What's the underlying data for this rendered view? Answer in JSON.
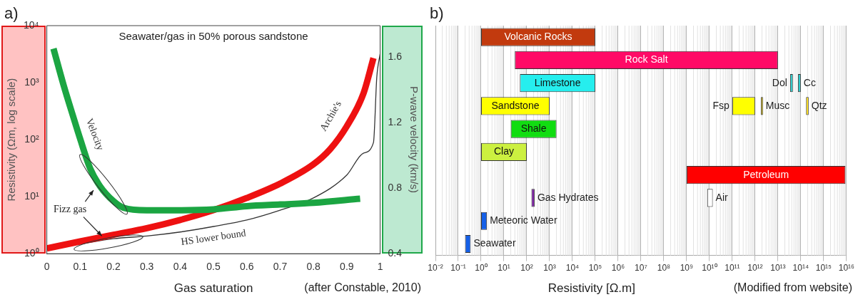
{
  "chart_data": [
    {
      "type": "line",
      "title": "Seawater/gas in 50% porous sandstone",
      "xlabel": "Gas saturation",
      "ylabel": "Resistivity (Ωm, log scale)",
      "y2label": "P-wave velocity (km/s)",
      "annotations": [
        "a)",
        "Fizz gas",
        "(after Constable, 2010)"
      ],
      "xlim": [
        0,
        1
      ],
      "xticks": [
        0,
        0.1,
        0.2,
        0.3,
        0.4,
        0.5,
        0.6,
        0.7,
        0.8,
        0.9,
        1
      ],
      "ylim": [
        1,
        10000
      ],
      "yticks": [
        {
          "value": 1,
          "label": "10⁰"
        },
        {
          "value": 10,
          "label": "10¹"
        },
        {
          "value": 100,
          "label": "10²"
        },
        {
          "value": 1000,
          "label": "10³"
        },
        {
          "value": 10000,
          "label": "10⁴"
        }
      ],
      "y2lim": [
        0.4,
        1.79
      ],
      "y2ticks": [
        0.4,
        0.8,
        1.2,
        1.6
      ],
      "log": "y",
      "series": [
        {
          "name": "Velocity",
          "color": "#1ba542",
          "axis": "y2",
          "x": [
            0.02,
            0.05,
            0.08,
            0.1,
            0.13,
            0.16,
            0.2,
            0.23,
            0.3,
            0.4,
            0.5,
            0.6,
            0.7,
            0.8,
            0.94
          ],
          "values": [
            1.65,
            1.43,
            1.23,
            1.1,
            0.92,
            0.81,
            0.72,
            0.68,
            0.665,
            0.665,
            0.67,
            0.69,
            0.7,
            0.71,
            0.735
          ]
        },
        {
          "name": "Archie's",
          "color": "#ee1111",
          "x": [
            0,
            0.1,
            0.2,
            0.3,
            0.4,
            0.5,
            0.6,
            0.7,
            0.8,
            0.85,
            0.9,
            0.95,
            0.98
          ],
          "values": [
            1.24,
            1.64,
            2.15,
            2.8,
            3.9,
            5.8,
            9.5,
            17,
            37,
            68,
            172,
            645,
            2700
          ]
        },
        {
          "name": "HS lower bound",
          "color": "#333333",
          "x": [
            0.1,
            0.2,
            0.3,
            0.4,
            0.5,
            0.6,
            0.7,
            0.8,
            0.9,
            0.95,
            0.98,
            0.99,
            1.0
          ],
          "values": [
            1.47,
            1.83,
            2.04,
            2.4,
            3.0,
            3.9,
            5.8,
            9.5,
            24,
            58,
            89,
            1250,
            3200
          ]
        }
      ]
    },
    {
      "type": "bar",
      "orientation": "horizontal",
      "xlabel": "Resistivity [Ω.m]",
      "annotations": [
        "b)",
        "(Modified from website)"
      ],
      "categories": [
        null,
        null,
        null,
        null,
        null,
        null,
        null,
        null,
        null,
        null
      ],
      "xlim": [
        0.01,
        1e+16
      ],
      "xticks": [
        {
          "value": 0.01,
          "label": "10⁻²"
        },
        {
          "value": 0.1,
          "label": "10⁻¹"
        },
        {
          "value": 1,
          "label": "10⁰"
        },
        {
          "value": 10,
          "label": "10¹"
        },
        {
          "value": 100,
          "label": "10²"
        },
        {
          "value": 1000,
          "label": "10³"
        },
        {
          "value": 10000,
          "label": "10⁴"
        },
        {
          "value": 100000,
          "label": "10⁵"
        },
        {
          "value": 1000000.0,
          "label": "10⁶"
        },
        {
          "value": 10000000.0,
          "label": "10⁷"
        },
        {
          "value": 100000000.0,
          "label": "10⁸"
        },
        {
          "value": 1000000000.0,
          "label": "10⁹"
        },
        {
          "value": 10000000000.0,
          "label": "10¹⁰"
        },
        {
          "value": 100000000000.0,
          "label": "10¹¹"
        },
        {
          "value": 1000000000000.0,
          "label": "10¹²"
        },
        {
          "value": 10000000000000.0,
          "label": "10¹³"
        },
        {
          "value": 100000000000000.0,
          "label": "10¹⁴"
        },
        {
          "value": 1000000000000000.0,
          "label": "10¹⁵"
        },
        {
          "value": 1e+16,
          "label": "10¹⁶"
        }
      ],
      "log": "x",
      "grid": "x",
      "tick_labels": "x",
      "series": [
        {
          "name": "Volcanic Rocks",
          "color": "#c23a0e",
          "values": [
            99999,
            null,
            null,
            null,
            null,
            null,
            null,
            null,
            null,
            null
          ],
          "base": [
            1,
            null,
            null,
            null,
            null,
            null,
            null,
            null,
            null,
            null
          ]
        },
        {
          "name": "Rock Salt",
          "color": "#ff0a66",
          "values": [
            null,
            10000000000000.0,
            null,
            null,
            null,
            null,
            null,
            null,
            null,
            null
          ],
          "base": [
            null,
            30,
            null,
            null,
            null,
            null,
            null,
            null,
            null,
            null
          ]
        },
        {
          "name": "Limestone",
          "color": "#26eeee",
          "values": [
            null,
            null,
            99950,
            null,
            null,
            null,
            null,
            null,
            null,
            null
          ],
          "base": [
            null,
            null,
            50,
            null,
            null,
            null,
            null,
            null,
            null,
            null
          ]
        },
        {
          "name": "Dol",
          "color": "#26cccc",
          "values": [
            null,
            null,
            11000000000000.0,
            null,
            null,
            null,
            null,
            null,
            null,
            null
          ],
          "base": [
            null,
            null,
            34000000000000.0,
            null,
            null,
            null,
            null,
            null,
            null,
            null
          ]
        },
        {
          "name": "Cc",
          "color": "#26cccc",
          "values": [
            null,
            null,
            25000000000000.0,
            null,
            null,
            null,
            null,
            null,
            null,
            null
          ],
          "base": [
            null,
            null,
            75000000000000.0,
            null,
            null,
            null,
            null,
            null,
            null,
            null
          ]
        },
        {
          "name": "Sandstone",
          "color": "#ffff00",
          "values": [
            null,
            null,
            null,
            999,
            null,
            null,
            null,
            null,
            null,
            null
          ],
          "base": [
            null,
            null,
            null,
            1,
            null,
            null,
            null,
            null,
            null,
            null
          ]
        },
        {
          "name": "Fsp",
          "color": "#ffff00",
          "values": [
            null,
            null,
            null,
            900000000000.0,
            null,
            null,
            null,
            null,
            null,
            null
          ],
          "base": [
            null,
            null,
            null,
            100000000000.0,
            null,
            null,
            null,
            null,
            null,
            null
          ]
        },
        {
          "name": "Musc",
          "color": "#ffdd00",
          "values": [
            null,
            null,
            null,
            400000000000.0,
            null,
            null,
            null,
            null,
            null,
            null
          ],
          "base": [
            null,
            null,
            null,
            1800000000000.0,
            null,
            null,
            null,
            null,
            null,
            null
          ]
        },
        {
          "name": "Qtz",
          "color": "#ffdd00",
          "values": [
            null,
            null,
            null,
            50000000000000.0,
            null,
            null,
            null,
            null,
            null,
            null
          ],
          "base": [
            null,
            null,
            null,
            170000000000000.0,
            null,
            null,
            null,
            null,
            null,
            null
          ]
        },
        {
          "name": "Shale",
          "color": "#11dd11",
          "values": [
            null,
            null,
            null,
            null,
            1980,
            null,
            null,
            null,
            null,
            null
          ],
          "base": [
            null,
            null,
            null,
            null,
            20,
            null,
            null,
            null,
            null,
            null
          ]
        },
        {
          "name": "Clay",
          "color": "#ccf040",
          "values": [
            null,
            null,
            null,
            null,
            null,
            99,
            null,
            null,
            null,
            null
          ],
          "base": [
            null,
            null,
            null,
            null,
            null,
            1,
            null,
            null,
            null,
            null
          ]
        },
        {
          "name": "Petroleum",
          "color": "#ff0000",
          "values": [
            null,
            null,
            null,
            null,
            null,
            null,
            9000000000000000.0,
            null,
            null,
            null
          ],
          "base": [
            null,
            null,
            null,
            null,
            null,
            null,
            1000000000.0,
            null,
            null,
            null
          ]
        },
        {
          "name": "Gas Hydrates",
          "color": "#7b1fa2",
          "values": [
            null,
            null,
            null,
            null,
            null,
            null,
            null,
            60,
            null,
            null
          ],
          "base": [
            null,
            null,
            null,
            null,
            null,
            null,
            null,
            160,
            null,
            null
          ]
        },
        {
          "name": "Air",
          "color": "#ffffff",
          "values": [
            null,
            null,
            null,
            null,
            null,
            null,
            null,
            6000000000.0,
            null,
            null
          ],
          "base": [
            null,
            null,
            null,
            null,
            null,
            null,
            null,
            8000000000.0,
            null,
            null
          ]
        },
        {
          "name": "Meteoric Water",
          "color": "#1560e8",
          "values": [
            null,
            null,
            null,
            null,
            null,
            null,
            null,
            null,
            0.8,
            null
          ],
          "base": [
            null,
            null,
            null,
            null,
            null,
            null,
            null,
            null,
            1,
            null
          ]
        },
        {
          "name": "Seawater",
          "color": "#1560e8",
          "values": [
            null,
            null,
            null,
            null,
            null,
            null,
            null,
            null,
            null,
            0.15
          ],
          "base": [
            null,
            null,
            null,
            null,
            null,
            null,
            null,
            null,
            null,
            0.2
          ]
        }
      ]
    }
  ]
}
